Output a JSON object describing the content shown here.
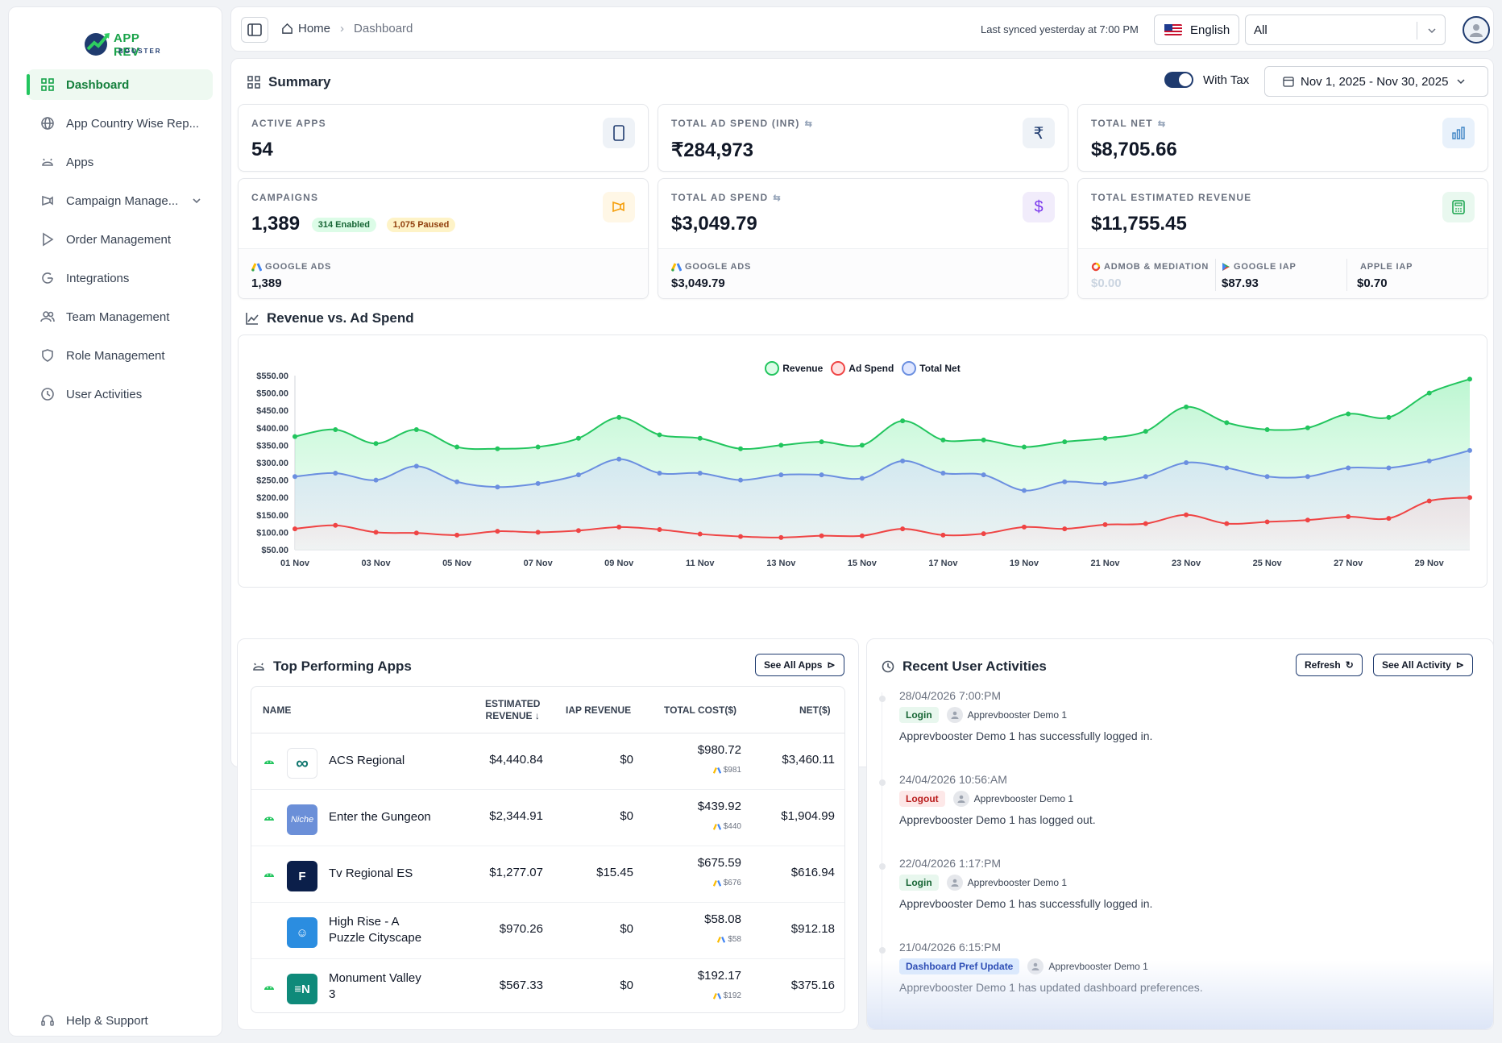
{
  "sidebar": {
    "logo": {
      "line1": "APP REV",
      "line2": "BOOSTER"
    },
    "items": [
      {
        "label": "Dashboard",
        "icon": "grid-icon",
        "active": true
      },
      {
        "label": "App Country Wise Rep...",
        "icon": "globe-icon"
      },
      {
        "label": "Apps",
        "icon": "android-icon"
      },
      {
        "label": "Campaign Manage...",
        "icon": "megaphone-icon",
        "expandable": true
      },
      {
        "label": "Order Management",
        "icon": "play-icon"
      },
      {
        "label": "Integrations",
        "icon": "google-icon"
      },
      {
        "label": "Team Management",
        "icon": "users-icon"
      },
      {
        "label": "Role Management",
        "icon": "shield-icon"
      },
      {
        "label": "User Activities",
        "icon": "activity-icon"
      }
    ],
    "help": "Help & Support"
  },
  "header": {
    "breadcrumb_home": "Home",
    "breadcrumb_current": "Dashboard",
    "synced": "Last synced yesterday at 7:00 PM",
    "language": "English",
    "app_filter": "All"
  },
  "summary": {
    "title": "Summary",
    "with_tax_label": "With Tax",
    "with_tax": true,
    "date_range": "Nov 1, 2025 - Nov 30, 2025",
    "cards": {
      "active_apps": {
        "label": "ACTIVE APPS",
        "value": "54"
      },
      "total_ad_spend_inr": {
        "label": "TOTAL AD SPEND (INR)",
        "value": "₹284,973"
      },
      "total_net": {
        "label": "TOTAL NET",
        "value": "$8,705.66"
      },
      "campaigns": {
        "label": "CAMPAIGNS",
        "value": "1,389",
        "enabled": "314 Enabled",
        "paused": "1,075 Paused",
        "sub_label": "GOOGLE ADS",
        "sub_value": "1,389"
      },
      "total_ad_spend": {
        "label": "TOTAL AD SPEND",
        "value": "$3,049.79",
        "sub_label": "GOOGLE ADS",
        "sub_value": "$3,049.79"
      },
      "total_estimated_revenue": {
        "label": "TOTAL ESTIMATED REVENUE",
        "value": "$11,755.45",
        "subs": [
          {
            "label": "ADMOB & MEDIATION",
            "value": "$0.00"
          },
          {
            "label": "GOOGLE IAP",
            "value": "$87.93"
          },
          {
            "label": "APPLE IAP",
            "value": "$0.70"
          }
        ]
      }
    },
    "colors": {
      "accent": "#1f3b6f",
      "green": "#22c55e",
      "red": "#ef4444",
      "blue": "#6b8fe0"
    }
  },
  "revenue_chart": {
    "title": "Revenue vs. Ad Spend"
  },
  "chart_data": {
    "type": "area",
    "title": "",
    "ylim": [
      50,
      550
    ],
    "yticks": [
      "$550.00",
      "$500.00",
      "$450.00",
      "$400.00",
      "$350.00",
      "$300.00",
      "$250.00",
      "$200.00",
      "$150.00",
      "$100.00",
      "$50.00"
    ],
    "xtick_labels": [
      "01 Nov",
      "03 Nov",
      "05 Nov",
      "07 Nov",
      "09 Nov",
      "11 Nov",
      "13 Nov",
      "15 Nov",
      "17 Nov",
      "19 Nov",
      "21 Nov",
      "23 Nov",
      "25 Nov",
      "27 Nov",
      "29 Nov"
    ],
    "x": [
      "01 Nov",
      "02 Nov",
      "03 Nov",
      "04 Nov",
      "05 Nov",
      "06 Nov",
      "07 Nov",
      "08 Nov",
      "09 Nov",
      "10 Nov",
      "11 Nov",
      "12 Nov",
      "13 Nov",
      "14 Nov",
      "15 Nov",
      "16 Nov",
      "17 Nov",
      "18 Nov",
      "19 Nov",
      "20 Nov",
      "21 Nov",
      "22 Nov",
      "23 Nov",
      "24 Nov",
      "25 Nov",
      "26 Nov",
      "27 Nov",
      "28 Nov",
      "29 Nov",
      "30 Nov"
    ],
    "series": [
      {
        "name": "Revenue",
        "color": "#22c55e",
        "values": [
          375,
          395,
          355,
          395,
          345,
          340,
          345,
          370,
          430,
          380,
          370,
          340,
          350,
          360,
          350,
          420,
          365,
          365,
          345,
          360,
          370,
          390,
          460,
          415,
          395,
          400,
          440,
          430,
          500,
          540
        ]
      },
      {
        "name": "Ad Spend",
        "color": "#ef4444",
        "values": [
          110,
          120,
          100,
          98,
          92,
          103,
          100,
          105,
          115,
          108,
          95,
          88,
          85,
          90,
          90,
          110,
          92,
          96,
          115,
          110,
          122,
          125,
          150,
          125,
          130,
          135,
          145,
          140,
          190,
          200
        ]
      },
      {
        "name": "Total Net",
        "color": "#6b8fe0",
        "values": [
          260,
          270,
          250,
          290,
          245,
          230,
          240,
          265,
          310,
          270,
          270,
          250,
          265,
          265,
          255,
          305,
          270,
          265,
          220,
          245,
          240,
          260,
          300,
          285,
          260,
          260,
          285,
          285,
          305,
          335
        ]
      }
    ],
    "legend": "top-center"
  },
  "top_apps": {
    "title": "Top Performing Apps",
    "see_all": "See All Apps",
    "columns": {
      "name": "NAME",
      "est_rev_1": "ESTIMATED",
      "est_rev_2": "REVENUE ↓",
      "iap": "IAP REVENUE",
      "cost": "TOTAL COST($)",
      "net": "NET($)"
    },
    "rows": [
      {
        "platform": "android-icon",
        "icon": "loop-app-icon",
        "name1": "ACS Regional",
        "name2": "",
        "est": "$4,440.84",
        "iap": "$0",
        "cost": "$980.72",
        "cost_sub": "$981",
        "net": "$3,460.11",
        "icon_bg": "#ffffff",
        "icon_text": "∞"
      },
      {
        "platform": "android-icon",
        "icon": "niche-app-icon",
        "name1": "Enter the Gungeon",
        "name2": "",
        "est": "$2,344.91",
        "iap": "$0",
        "cost": "$439.92",
        "cost_sub": "$440",
        "net": "$1,904.99",
        "icon_bg": "#6b8fd8",
        "icon_text": "Niche"
      },
      {
        "platform": "android-icon",
        "icon": "f-app-icon",
        "name1": "Tv Regional ES",
        "name2": "",
        "est": "$1,277.07",
        "iap": "$15.45",
        "cost": "$675.59",
        "cost_sub": "$676",
        "net": "$616.94",
        "icon_bg": "#0b1f4a",
        "icon_text": "F"
      },
      {
        "platform": "apple-icon",
        "icon": "robot-app-icon",
        "name1": "High Rise - A",
        "name2": "Puzzle Cityscape",
        "est": "$970.26",
        "iap": "$0",
        "cost": "$58.08",
        "cost_sub": "$58",
        "net": "$912.18",
        "icon_bg": "#2b8de0",
        "icon_text": "☺"
      },
      {
        "platform": "android-icon",
        "icon": "en-app-icon",
        "name1": "Monument Valley",
        "name2": "3",
        "est": "$567.33",
        "iap": "$0",
        "cost": "$192.17",
        "cost_sub": "$192",
        "net": "$375.16",
        "icon_bg": "#0f8a7a",
        "icon_text": "≡N"
      }
    ]
  },
  "activities": {
    "title": "Recent User Activities",
    "refresh": "Refresh",
    "see_all": "See All Activity",
    "items": [
      {
        "when": "28/04/2026 7:00:PM",
        "tag": "Login",
        "user": "Apprevbooster Demo 1",
        "desc": "Apprevbooster Demo 1 has successfully logged in."
      },
      {
        "when": "24/04/2026 10:56:AM",
        "tag": "Logout",
        "user": "Apprevbooster Demo 1",
        "desc": "Apprevbooster Demo 1 has logged out."
      },
      {
        "when": "22/04/2026 1:17:PM",
        "tag": "Login",
        "user": "Apprevbooster Demo 1",
        "desc": "Apprevbooster Demo 1 has successfully logged in."
      },
      {
        "when": "21/04/2026 6:15:PM",
        "tag": "Dashboard Pref Update",
        "user": "Apprevbooster Demo 1",
        "desc": "Apprevbooster Demo 1 has updated dashboard preferences."
      }
    ]
  }
}
